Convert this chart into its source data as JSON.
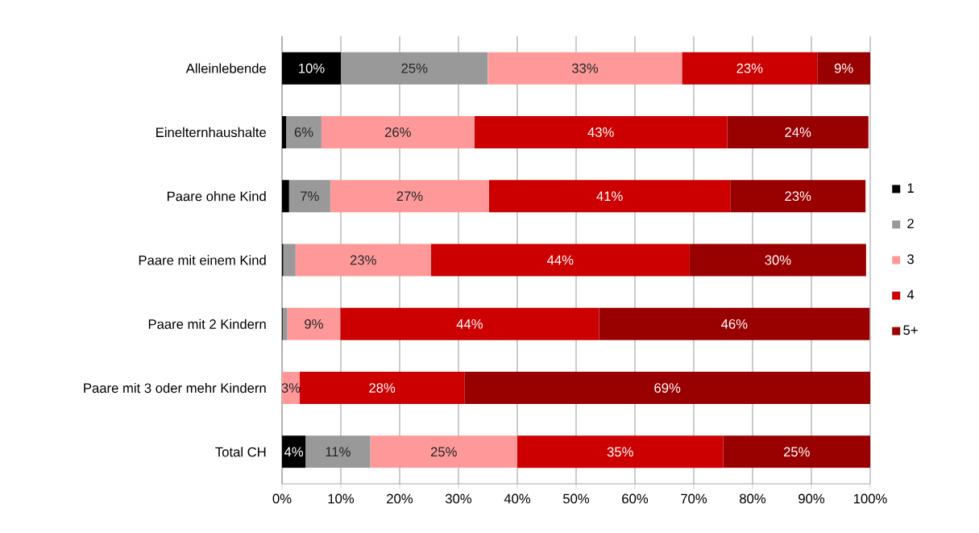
{
  "chart_data": {
    "type": "bar",
    "orientation": "horizontal",
    "stacked": true,
    "categories": [
      "Alleinlebende",
      "Einelternhaushalte",
      "Paare ohne Kind",
      "Paare mit einem Kind",
      "Paare mit 2 Kindern",
      "Paare mit 3 oder mehr Kindern",
      "Total CH"
    ],
    "series": [
      {
        "name": "1",
        "color": "#000000",
        "values": [
          10,
          0.7,
          1.2,
          0.2,
          0.1,
          0,
          4
        ],
        "value_labels": [
          "10%",
          null,
          null,
          null,
          null,
          null,
          "4%"
        ]
      },
      {
        "name": "2",
        "color": "#999999",
        "values": [
          25,
          6,
          7,
          2.1,
          0.8,
          0,
          11
        ],
        "value_labels": [
          "25%",
          "6%",
          "7%",
          null,
          null,
          null,
          "11%"
        ]
      },
      {
        "name": "3",
        "color": "#ff9999",
        "values": [
          33,
          26,
          27,
          23,
          9,
          3,
          25
        ],
        "value_labels": [
          "33%",
          "26%",
          "27%",
          "23%",
          "9%",
          "3%",
          "25%"
        ]
      },
      {
        "name": "4",
        "color": "#cc0000",
        "values": [
          23,
          43,
          41,
          44,
          44,
          28,
          35
        ],
        "value_labels": [
          "23%",
          "43%",
          "41%",
          "44%",
          "44%",
          "28%",
          "35%"
        ]
      },
      {
        "name": "5+",
        "color": "#990000",
        "values": [
          9,
          24,
          23,
          30,
          46,
          69,
          25
        ],
        "value_labels": [
          "9%",
          "24%",
          "23%",
          "30%",
          "46%",
          "69%",
          "25%"
        ]
      }
    ],
    "xlim": [
      0,
      100
    ],
    "xticks": [
      {
        "value": 0,
        "label": "0%"
      },
      {
        "value": 10,
        "label": "10%"
      },
      {
        "value": 20,
        "label": "20%"
      },
      {
        "value": 30,
        "label": "30%"
      },
      {
        "value": 40,
        "label": "40%"
      },
      {
        "value": 50,
        "label": "50%"
      },
      {
        "value": 60,
        "label": "60%"
      },
      {
        "value": 70,
        "label": "70%"
      },
      {
        "value": 80,
        "label": "80%"
      },
      {
        "value": 90,
        "label": "90%"
      },
      {
        "value": 100,
        "label": "100%"
      }
    ],
    "grid": "x",
    "legend": "right"
  }
}
